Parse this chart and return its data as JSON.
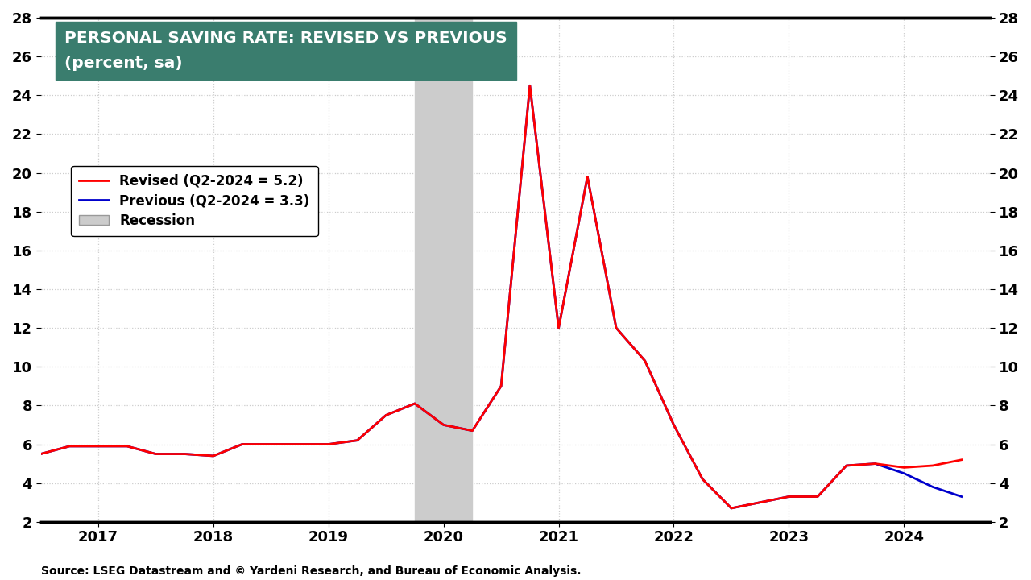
{
  "title_line1": "PERSONAL SAVING RATE: REVISED VS PREVIOUS",
  "title_line2": "(percent, sa)",
  "title_bg_color": "#3a7d6e",
  "title_text_color": "#ffffff",
  "source_text": "Source: LSEG Datastream and © Yardeni Research, and Bureau of Economic Analysis.",
  "recession_start": 2019.75,
  "recession_end": 2020.25,
  "recession_color": "#cccccc",
  "ylim": [
    2,
    28
  ],
  "yticks": [
    2,
    4,
    6,
    8,
    10,
    12,
    14,
    16,
    18,
    20,
    22,
    24,
    26,
    28
  ],
  "bg_color": "#ffffff",
  "grid_color": "#cccccc",
  "revised_color": "#ff0000",
  "previous_color": "#0000cc",
  "line_width": 2.0,
  "revised_label": "Revised (Q2-2024 = 5.2)",
  "previous_label": "Previous (Q2-2024 = 3.3)",
  "recession_label": "Recession",
  "revised_dates": [
    2016.5,
    2016.75,
    2017.0,
    2017.25,
    2017.5,
    2017.75,
    2018.0,
    2018.25,
    2018.5,
    2018.75,
    2019.0,
    2019.25,
    2019.5,
    2019.75,
    2020.0,
    2020.25,
    2020.5,
    2020.75,
    2021.0,
    2021.25,
    2021.5,
    2021.75,
    2022.0,
    2022.25,
    2022.5,
    2022.75,
    2023.0,
    2023.25,
    2023.5,
    2023.75,
    2024.0,
    2024.25,
    2024.5
  ],
  "revised_values": [
    5.5,
    5.9,
    5.9,
    5.9,
    5.5,
    5.5,
    5.4,
    6.0,
    6.0,
    6.0,
    6.0,
    6.2,
    7.5,
    8.1,
    7.0,
    6.7,
    9.0,
    24.5,
    12.0,
    19.8,
    12.0,
    10.3,
    7.0,
    4.2,
    2.7,
    3.0,
    3.3,
    3.3,
    4.9,
    5.0,
    4.8,
    4.9,
    5.2
  ],
  "previous_dates": [
    2016.5,
    2016.75,
    2017.0,
    2017.25,
    2017.5,
    2017.75,
    2018.0,
    2018.25,
    2018.5,
    2018.75,
    2019.0,
    2019.25,
    2019.5,
    2019.75,
    2020.0,
    2020.25,
    2020.5,
    2020.75,
    2021.0,
    2021.25,
    2021.5,
    2021.75,
    2022.0,
    2022.25,
    2022.5,
    2022.75,
    2023.0,
    2023.25,
    2023.5,
    2023.75,
    2024.0,
    2024.25,
    2024.5
  ],
  "previous_values": [
    5.5,
    5.9,
    5.9,
    5.9,
    5.5,
    5.5,
    5.4,
    6.0,
    6.0,
    6.0,
    6.0,
    6.2,
    7.5,
    8.1,
    7.0,
    6.7,
    9.0,
    24.5,
    12.0,
    19.8,
    12.0,
    10.3,
    7.0,
    4.2,
    2.7,
    3.0,
    3.3,
    3.3,
    4.9,
    5.0,
    4.5,
    3.8,
    3.3
  ],
  "xlim": [
    2016.5,
    2024.75
  ],
  "xticks": [
    2017,
    2018,
    2019,
    2020,
    2021,
    2022,
    2023,
    2024
  ],
  "xticklabels": [
    "2017",
    "2018",
    "2019",
    "2020",
    "2021",
    "2022",
    "2023",
    "2024"
  ]
}
